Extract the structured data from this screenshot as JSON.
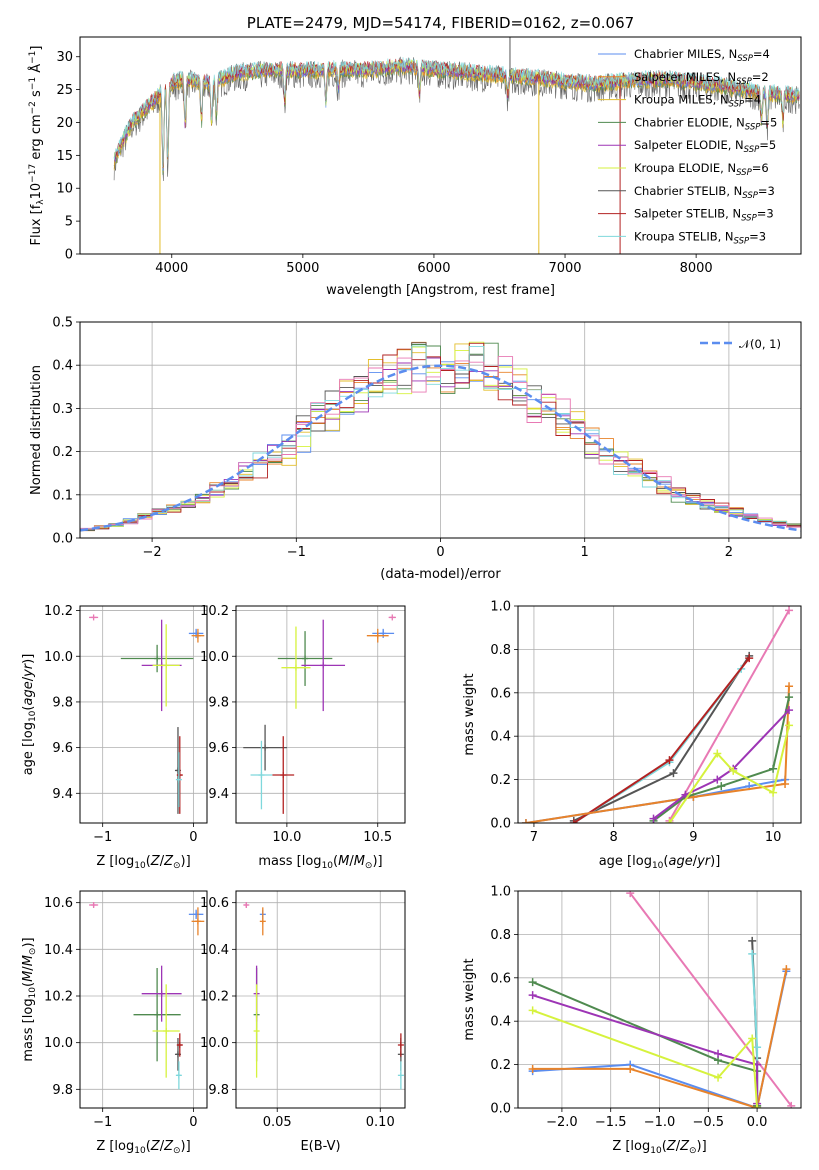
{
  "colors": {
    "chabrier_miles": "#5b8def",
    "salpeter_miles": "#e8832a",
    "kroupa_miles": "#e3be2b",
    "chabrier_elodie": "#4f8a4f",
    "salpeter_elodie": "#9d35b5",
    "kroupa_elodie": "#d6f23d",
    "chabrier_stelib": "#555555",
    "salpeter_stelib": "#b22222",
    "kroupa_stelib": "#7fd8dc",
    "pink": "#e879b4"
  },
  "chart_data": [
    {
      "id": "spectrum",
      "type": "line",
      "title": "PLATE=2479, MJD=54174, FIBERID=0162, z=0.067",
      "xlabel": "wavelength [Angstrom, rest frame]",
      "ylabel": "Flux [fλ10⁻¹⁷ erg cm⁻² s⁻¹ Å⁻¹]",
      "xlim": [
        3300,
        8800
      ],
      "ylim": [
        0,
        33
      ],
      "xticks": [
        4000,
        5000,
        6000,
        7000,
        8000
      ],
      "yticks": [
        0,
        5,
        10,
        15,
        20,
        25,
        30
      ],
      "grid": false,
      "legend_position": "top-right",
      "continuum": [
        [
          3560,
          14
        ],
        [
          3620,
          17
        ],
        [
          3700,
          20
        ],
        [
          3800,
          22
        ],
        [
          3900,
          24
        ],
        [
          4000,
          26
        ],
        [
          4100,
          26.5
        ],
        [
          4300,
          26
        ],
        [
          4500,
          27.5
        ],
        [
          4800,
          28
        ],
        [
          5000,
          27.8
        ],
        [
          5200,
          28
        ],
        [
          5500,
          28
        ],
        [
          5800,
          28.5
        ],
        [
          6000,
          28
        ],
        [
          6300,
          27.5
        ],
        [
          6600,
          27
        ],
        [
          6900,
          26.5
        ],
        [
          7200,
          25.8
        ],
        [
          7500,
          26.3
        ],
        [
          7800,
          26.5
        ],
        [
          8200,
          25.5
        ],
        [
          8500,
          24.5
        ],
        [
          8800,
          24
        ]
      ],
      "absorption_lines": [
        [
          3934,
          12
        ],
        [
          3969,
          11
        ],
        [
          4102,
          7
        ],
        [
          4227,
          6
        ],
        [
          4304,
          6
        ],
        [
          4340,
          5
        ],
        [
          4861,
          5
        ],
        [
          5175,
          5
        ],
        [
          5270,
          3
        ],
        [
          5890,
          4
        ],
        [
          6563,
          3
        ],
        [
          8498,
          4
        ],
        [
          8542,
          5
        ],
        [
          8662,
          4
        ]
      ],
      "series": [
        {
          "name": "Chabrier MILES, N_SSP=4",
          "color_key": "chabrier_miles",
          "model": true
        },
        {
          "name": "Salpeter MILES, N_SSP=2",
          "color_key": "salpeter_miles",
          "model": true
        },
        {
          "name": "Kroupa MILES, N_SSP=4",
          "color_key": "kroupa_miles",
          "model": true
        },
        {
          "name": "Chabrier ELODIE, N_SSP=5",
          "color_key": "chabrier_elodie",
          "model": true
        },
        {
          "name": "Salpeter ELODIE, N_SSP=5",
          "color_key": "salpeter_elodie",
          "model": true
        },
        {
          "name": "Kroupa ELODIE, N_SSP=6",
          "color_key": "kroupa_elodie",
          "model": true
        },
        {
          "name": "Chabrier STELIB, N_SSP=3",
          "color_key": "chabrier_stelib",
          "model": true
        },
        {
          "name": "Salpeter STELIB, N_SSP=3",
          "color_key": "salpeter_stelib",
          "model": true
        },
        {
          "name": "Kroupa STELIB, N_SSP=3",
          "color_key": "kroupa_stelib",
          "model": true
        }
      ],
      "legend_entries": [
        {
          "prefix": "Chabrier MILES, N",
          "sub": "SSP",
          "suffix": "=4",
          "color_key": "chabrier_miles"
        },
        {
          "prefix": "Salpeter MILES, N",
          "sub": "SSP",
          "suffix": "=2",
          "color_key": "salpeter_miles"
        },
        {
          "prefix": "Kroupa MILES, N",
          "sub": "SSP",
          "suffix": "=4",
          "color_key": "kroupa_miles"
        },
        {
          "prefix": "Chabrier ELODIE, N",
          "sub": "SSP",
          "suffix": "=5",
          "color_key": "chabrier_elodie"
        },
        {
          "prefix": "Salpeter ELODIE, N",
          "sub": "SSP",
          "suffix": "=5",
          "color_key": "salpeter_elodie"
        },
        {
          "prefix": "Kroupa ELODIE, N",
          "sub": "SSP",
          "suffix": "=6",
          "color_key": "kroupa_elodie"
        },
        {
          "prefix": "Chabrier STELIB, N",
          "sub": "SSP",
          "suffix": "=3",
          "color_key": "chabrier_stelib"
        },
        {
          "prefix": "Salpeter STELIB, N",
          "sub": "SSP",
          "suffix": "=3",
          "color_key": "salpeter_stelib"
        },
        {
          "prefix": "Kroupa STELIB, N",
          "sub": "SSP",
          "suffix": "=3",
          "color_key": "kroupa_stelib"
        }
      ],
      "spikes": [
        [
          3910,
          0
        ],
        [
          6800,
          0
        ],
        [
          7420,
          0
        ],
        [
          6580,
          33
        ]
      ]
    },
    {
      "id": "residuals",
      "type": "bar",
      "xlabel": "(data-model)/error",
      "ylabel": "Normed distribution",
      "xlim": [
        -2.5,
        2.5
      ],
      "ylim": [
        0,
        0.5
      ],
      "xticks": [
        -2,
        -1,
        0,
        1,
        2
      ],
      "yticks": [
        0.0,
        0.1,
        0.2,
        0.3,
        0.4,
        0.5
      ],
      "grid": true,
      "bin_width": 0.1,
      "bin_start": -2.5,
      "reference_curve": {
        "name": "N(0,1)",
        "label": "𝒩(0, 1)",
        "sigma": 1.0,
        "color": "#5b8def",
        "dashed": true
      },
      "legend_position": "top-right",
      "histogram_profile": [
        0.02,
        0.025,
        0.03,
        0.04,
        0.05,
        0.06,
        0.07,
        0.08,
        0.09,
        0.11,
        0.13,
        0.15,
        0.17,
        0.19,
        0.21,
        0.24,
        0.27,
        0.29,
        0.32,
        0.34,
        0.36,
        0.38,
        0.39,
        0.4,
        0.4,
        0.4,
        0.4,
        0.39,
        0.38,
        0.36,
        0.34,
        0.32,
        0.3,
        0.28,
        0.25,
        0.22,
        0.2,
        0.18,
        0.16,
        0.14,
        0.12,
        0.1,
        0.09,
        0.08,
        0.07,
        0.06,
        0.05,
        0.04,
        0.035,
        0.03
      ]
    },
    {
      "id": "age_vs_Z",
      "type": "scatter",
      "xlabel": "Z [log10(Z/Z⊙)]",
      "ylabel": "age  [log10(age/yr)]",
      "xlim": [
        -1.25,
        0.15
      ],
      "ylim": [
        9.27,
        10.22
      ],
      "xticks": [
        -1,
        0
      ],
      "yticks": [
        9.4,
        9.6,
        9.8,
        10.0,
        10.2
      ],
      "grid": true,
      "points": [
        {
          "x": -1.1,
          "y": 10.17,
          "xerr": 0.05,
          "yerr": 0.0,
          "color_key": "pink"
        },
        {
          "x": 0.03,
          "y": 10.1,
          "xerr": 0.08,
          "yerr": 0.02,
          "color_key": "chabrier_miles"
        },
        {
          "x": 0.05,
          "y": 10.09,
          "xerr": 0.07,
          "yerr": 0.03,
          "color_key": "salpeter_miles"
        },
        {
          "x": -0.4,
          "y": 9.99,
          "xerr": 0.4,
          "yerr": 0.06,
          "color_key": "chabrier_elodie"
        },
        {
          "x": -0.35,
          "y": 9.96,
          "xerr": 0.22,
          "yerr": 0.2,
          "color_key": "salpeter_elodie"
        },
        {
          "x": -0.3,
          "y": 9.96,
          "xerr": 0.15,
          "yerr": 0.18,
          "color_key": "kroupa_elodie"
        },
        {
          "x": -0.17,
          "y": 9.5,
          "xerr": 0.02,
          "yerr": 0.19,
          "color_key": "chabrier_stelib"
        },
        {
          "x": -0.15,
          "y": 9.48,
          "xerr": 0.03,
          "yerr": 0.17,
          "color_key": "salpeter_stelib"
        },
        {
          "x": -0.16,
          "y": 9.46,
          "xerr": 0.02,
          "yerr": 0.12,
          "color_key": "kroupa_stelib"
        }
      ]
    },
    {
      "id": "age_vs_mass",
      "type": "scatter",
      "xlabel": "mass [log10(M/M⊙)]",
      "ylabel": "",
      "xlim": [
        9.72,
        10.65
      ],
      "ylim": [
        9.27,
        10.22
      ],
      "xticks": [
        10.0,
        10.5
      ],
      "yticks": [
        9.4,
        9.6,
        9.8,
        10.0,
        10.2
      ],
      "grid": true,
      "points": [
        {
          "x": 10.58,
          "y": 10.17,
          "xerr": 0.02,
          "yerr": 0.0,
          "color_key": "pink"
        },
        {
          "x": 10.53,
          "y": 10.1,
          "xerr": 0.06,
          "yerr": 0.02,
          "color_key": "chabrier_miles"
        },
        {
          "x": 10.5,
          "y": 10.09,
          "xerr": 0.06,
          "yerr": 0.03,
          "color_key": "salpeter_miles"
        },
        {
          "x": 10.1,
          "y": 9.99,
          "xerr": 0.15,
          "yerr": 0.12,
          "color_key": "chabrier_elodie"
        },
        {
          "x": 10.2,
          "y": 9.96,
          "xerr": 0.12,
          "yerr": 0.2,
          "color_key": "salpeter_elodie"
        },
        {
          "x": 10.05,
          "y": 9.95,
          "xerr": 0.08,
          "yerr": 0.18,
          "color_key": "kroupa_elodie"
        },
        {
          "x": 9.88,
          "y": 9.6,
          "xerr": 0.12,
          "yerr": 0.1,
          "color_key": "chabrier_stelib"
        },
        {
          "x": 9.98,
          "y": 9.48,
          "xerr": 0.06,
          "yerr": 0.17,
          "color_key": "salpeter_stelib"
        },
        {
          "x": 9.86,
          "y": 9.48,
          "xerr": 0.06,
          "yerr": 0.15,
          "color_key": "kroupa_stelib"
        }
      ]
    },
    {
      "id": "weight_vs_age",
      "type": "line",
      "xlabel": "age  [log10(age/yr)]",
      "ylabel": "mass weight",
      "xlim": [
        6.8,
        10.35
      ],
      "ylim": [
        0,
        1.0
      ],
      "xticks": [
        7,
        8,
        9,
        10
      ],
      "yticks": [
        0.0,
        0.2,
        0.4,
        0.6,
        0.8,
        1.0
      ],
      "grid": true,
      "series": [
        {
          "color_key": "pink",
          "x": [
            8.7,
            10.2
          ],
          "y": [
            0.01,
            0.98
          ]
        },
        {
          "color_key": "chabrier_stelib",
          "x": [
            7.5,
            8.75,
            9.7
          ],
          "y": [
            0.01,
            0.23,
            0.77
          ]
        },
        {
          "color_key": "kroupa_stelib",
          "x": [
            7.5,
            8.7,
            9.6
          ],
          "y": [
            0.0,
            0.28,
            0.71
          ]
        },
        {
          "color_key": "salpeter_stelib",
          "x": [
            7.5,
            8.7,
            9.7
          ],
          "y": [
            0.0,
            0.29,
            0.76
          ]
        },
        {
          "color_key": "chabrier_miles",
          "x": [
            6.9,
            9.0,
            9.7,
            10.15
          ],
          "y": [
            0.0,
            0.12,
            0.17,
            0.2
          ]
        },
        {
          "color_key": "salpeter_miles",
          "x": [
            6.9,
            9.0,
            10.15,
            10.2
          ],
          "y": [
            0.0,
            0.12,
            0.18,
            0.63
          ]
        },
        {
          "color_key": "chabrier_elodie",
          "x": [
            8.5,
            8.9,
            9.35,
            10.0,
            10.2
          ],
          "y": [
            0.01,
            0.12,
            0.17,
            0.25,
            0.58
          ]
        },
        {
          "color_key": "salpeter_elodie",
          "x": [
            8.5,
            8.9,
            9.3,
            9.5,
            10.2
          ],
          "y": [
            0.02,
            0.13,
            0.2,
            0.25,
            0.52
          ]
        },
        {
          "color_key": "kroupa_elodie",
          "x": [
            8.7,
            9.3,
            9.5,
            10.0,
            10.2
          ],
          "y": [
            0.0,
            0.32,
            0.24,
            0.14,
            0.45
          ]
        }
      ]
    },
    {
      "id": "mass_vs_Z",
      "type": "scatter",
      "xlabel": "Z [log10(Z/Z⊙)]",
      "ylabel": "mass [log10(M/M⊙)]",
      "xlim": [
        -1.25,
        0.15
      ],
      "ylim": [
        9.72,
        10.65
      ],
      "xticks": [
        -1,
        0
      ],
      "yticks": [
        9.8,
        10.0,
        10.2,
        10.4,
        10.6
      ],
      "grid": true,
      "points": [
        {
          "x": -1.1,
          "y": 10.59,
          "xerr": 0.05,
          "yerr": 0.01,
          "color_key": "pink"
        },
        {
          "x": 0.03,
          "y": 10.55,
          "xerr": 0.08,
          "yerr": 0.02,
          "color_key": "chabrier_miles"
        },
        {
          "x": 0.05,
          "y": 10.52,
          "xerr": 0.07,
          "yerr": 0.06,
          "color_key": "salpeter_miles"
        },
        {
          "x": -0.4,
          "y": 10.12,
          "xerr": 0.26,
          "yerr": 0.2,
          "color_key": "chabrier_elodie"
        },
        {
          "x": -0.35,
          "y": 10.21,
          "xerr": 0.22,
          "yerr": 0.12,
          "color_key": "salpeter_elodie"
        },
        {
          "x": -0.3,
          "y": 10.05,
          "xerr": 0.15,
          "yerr": 0.2,
          "color_key": "kroupa_elodie"
        },
        {
          "x": -0.17,
          "y": 9.95,
          "xerr": 0.02,
          "yerr": 0.07,
          "color_key": "chabrier_stelib"
        },
        {
          "x": -0.15,
          "y": 9.99,
          "xerr": 0.03,
          "yerr": 0.05,
          "color_key": "salpeter_stelib"
        },
        {
          "x": -0.16,
          "y": 9.86,
          "xerr": 0.02,
          "yerr": 0.06,
          "color_key": "kroupa_stelib"
        }
      ]
    },
    {
      "id": "mass_vs_ebv",
      "type": "scatter",
      "xlabel": "E(B-V)",
      "ylabel": "",
      "xlim": [
        0.03,
        0.112
      ],
      "ylim": [
        9.72,
        10.65
      ],
      "xticks": [
        0.05,
        0.1
      ],
      "yticks": [
        9.8,
        10.0,
        10.2,
        10.4,
        10.6
      ],
      "grid": true,
      "points": [
        {
          "x": 0.035,
          "y": 10.59,
          "xerr": 0.001,
          "yerr": 0.01,
          "color_key": "pink"
        },
        {
          "x": 0.043,
          "y": 10.55,
          "xerr": 0.0,
          "yerr": 0.02,
          "color_key": "chabrier_miles"
        },
        {
          "x": 0.043,
          "y": 10.52,
          "xerr": 0.0,
          "yerr": 0.06,
          "color_key": "salpeter_miles"
        },
        {
          "x": 0.04,
          "y": 10.12,
          "xerr": 0.0,
          "yerr": 0.2,
          "color_key": "chabrier_elodie"
        },
        {
          "x": 0.04,
          "y": 10.21,
          "xerr": 0.0,
          "yerr": 0.12,
          "color_key": "salpeter_elodie"
        },
        {
          "x": 0.04,
          "y": 10.05,
          "xerr": 0.0,
          "yerr": 0.2,
          "color_key": "kroupa_elodie"
        },
        {
          "x": 0.11,
          "y": 9.95,
          "xerr": 0.0,
          "yerr": 0.07,
          "color_key": "chabrier_stelib"
        },
        {
          "x": 0.11,
          "y": 9.99,
          "xerr": 0.0,
          "yerr": 0.05,
          "color_key": "salpeter_stelib"
        },
        {
          "x": 0.11,
          "y": 9.86,
          "xerr": 0.0,
          "yerr": 0.06,
          "color_key": "kroupa_stelib"
        }
      ]
    },
    {
      "id": "weight_vs_Z",
      "type": "line",
      "xlabel": "Z [log10(Z/Z⊙)]",
      "ylabel": "mass weight",
      "xlim": [
        -2.45,
        0.45
      ],
      "ylim": [
        0,
        1.0
      ],
      "xticks": [
        -2.0,
        -1.5,
        -1.0,
        -0.5,
        0.0
      ],
      "yticks": [
        0.0,
        0.2,
        0.4,
        0.6,
        0.8,
        1.0
      ],
      "grid": true,
      "series": [
        {
          "color_key": "pink",
          "x": [
            -1.3,
            0.35
          ],
          "y": [
            0.99,
            0.01
          ]
        },
        {
          "color_key": "chabrier_stelib",
          "x": [
            -0.05,
            0.0,
            0.0
          ],
          "y": [
            0.77,
            0.23,
            0.01
          ]
        },
        {
          "color_key": "kroupa_stelib",
          "x": [
            -0.05,
            0.0,
            0.0
          ],
          "y": [
            0.71,
            0.28,
            0.0
          ]
        },
        {
          "color_key": "chabrier_miles",
          "x": [
            -2.3,
            -1.3,
            0.0,
            0.3
          ],
          "y": [
            0.17,
            0.2,
            0.0,
            0.63
          ]
        },
        {
          "color_key": "salpeter_miles",
          "x": [
            -2.3,
            -1.3,
            0.0,
            0.3
          ],
          "y": [
            0.18,
            0.18,
            0.0,
            0.64
          ]
        },
        {
          "color_key": "chabrier_elodie",
          "x": [
            -2.3,
            -0.4,
            0.0,
            0.0
          ],
          "y": [
            0.58,
            0.22,
            0.17,
            0.01
          ]
        },
        {
          "color_key": "salpeter_elodie",
          "x": [
            -2.3,
            -0.4,
            0.0,
            0.0
          ],
          "y": [
            0.52,
            0.25,
            0.2,
            0.02
          ]
        },
        {
          "color_key": "kroupa_elodie",
          "x": [
            -2.3,
            -0.4,
            -0.05,
            0.0
          ],
          "y": [
            0.45,
            0.14,
            0.32,
            0.0
          ]
        }
      ]
    }
  ]
}
